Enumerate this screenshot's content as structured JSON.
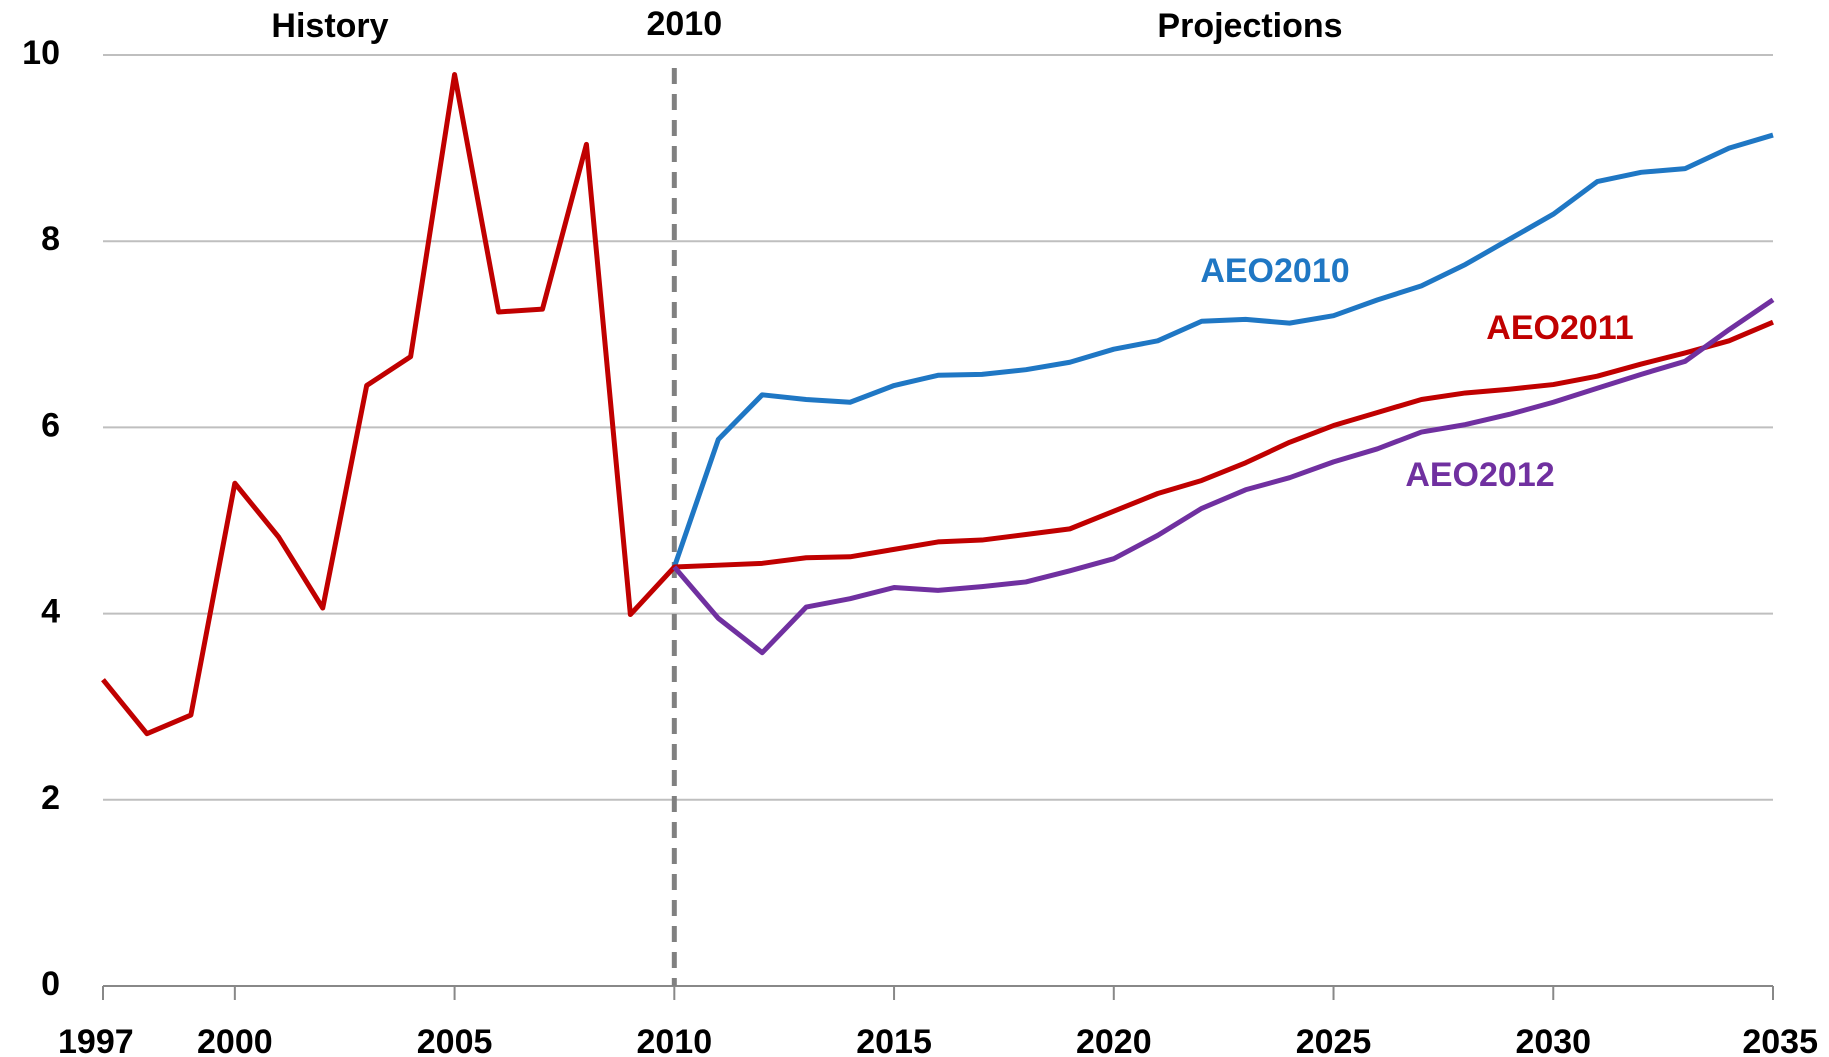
{
  "chart_data": {
    "type": "line",
    "x": [
      1997,
      1998,
      1999,
      2000,
      2001,
      2002,
      2003,
      2004,
      2005,
      2006,
      2007,
      2008,
      2009,
      2010,
      2011,
      2012,
      2013,
      2014,
      2015,
      2016,
      2017,
      2018,
      2019,
      2020,
      2021,
      2022,
      2023,
      2024,
      2025,
      2026,
      2027,
      2028,
      2029,
      2030,
      2031,
      2032,
      2033,
      2034,
      2035
    ],
    "series": [
      {
        "name": "AEO2010",
        "color": "#1f77c4",
        "values": [
          null,
          null,
          null,
          null,
          null,
          null,
          null,
          null,
          null,
          null,
          null,
          null,
          null,
          4.5,
          5.87,
          6.35,
          6.3,
          6.27,
          6.45,
          6.56,
          6.57,
          6.62,
          6.7,
          6.84,
          6.93,
          7.14,
          7.16,
          7.12,
          7.2,
          7.37,
          7.52,
          7.75,
          8.02,
          8.29,
          8.64,
          8.74,
          8.78,
          9.0,
          9.14
        ]
      },
      {
        "name": "AEO2011",
        "color": "#c00000",
        "values": [
          3.29,
          2.71,
          2.91,
          5.4,
          4.82,
          4.06,
          6.45,
          6.76,
          9.79,
          7.24,
          7.27,
          9.04,
          3.99,
          4.5,
          4.52,
          4.54,
          4.6,
          4.61,
          4.69,
          4.77,
          4.79,
          4.85,
          4.91,
          5.1,
          5.29,
          5.43,
          5.62,
          5.84,
          6.02,
          6.16,
          6.3,
          6.37,
          6.41,
          6.46,
          6.55,
          6.68,
          6.8,
          6.93,
          7.13
        ]
      },
      {
        "name": "AEO2012",
        "color": "#7030a0",
        "values": [
          null,
          null,
          null,
          null,
          null,
          null,
          null,
          null,
          null,
          null,
          null,
          null,
          null,
          4.5,
          3.95,
          3.58,
          4.07,
          4.16,
          4.28,
          4.25,
          4.29,
          4.34,
          4.46,
          4.59,
          4.84,
          5.13,
          5.33,
          5.46,
          5.63,
          5.77,
          5.95,
          6.03,
          6.14,
          6.27,
          6.42,
          6.57,
          6.71,
          7.05,
          7.37
        ]
      }
    ],
    "annotations": [
      "History",
      "Projections"
    ],
    "reference_line": {
      "x": 2010,
      "label": "2010"
    },
    "xlim": [
      1997,
      2035
    ],
    "xticks": [
      1997,
      2000,
      2005,
      2010,
      2015,
      2020,
      2025,
      2030,
      2035
    ],
    "ylim": [
      0,
      10
    ],
    "yticks": [
      0,
      2,
      4,
      6,
      8,
      10
    ],
    "grid": true
  }
}
